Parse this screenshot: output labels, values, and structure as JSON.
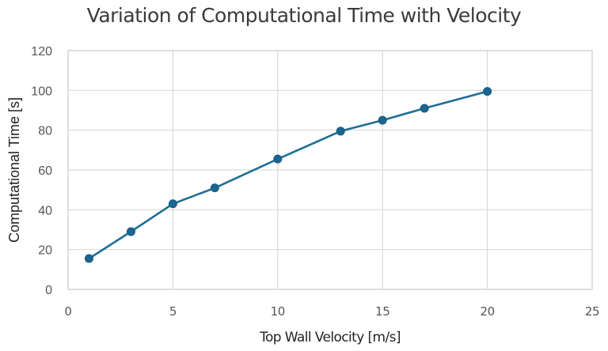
{
  "chart_data": {
    "type": "line",
    "title": "Variation of Computational Time with Velocity",
    "xlabel": "Top Wall Velocity [m/s]",
    "ylabel": "Computational Time [s]",
    "xlim": [
      0,
      25
    ],
    "ylim": [
      0,
      120
    ],
    "xticks": [
      0,
      5,
      10,
      15,
      20,
      25
    ],
    "yticks": [
      0,
      20,
      40,
      60,
      80,
      100,
      120
    ],
    "grid": true,
    "legend": "none",
    "series": [
      {
        "name": "Computational Time",
        "color": "#1f6e96",
        "marker": "circle",
        "x": [
          1,
          3,
          5,
          7,
          10,
          13,
          15,
          17,
          20
        ],
        "y": [
          15.5,
          29,
          43,
          51,
          65.5,
          79.5,
          85,
          91,
          99.5
        ]
      }
    ]
  }
}
